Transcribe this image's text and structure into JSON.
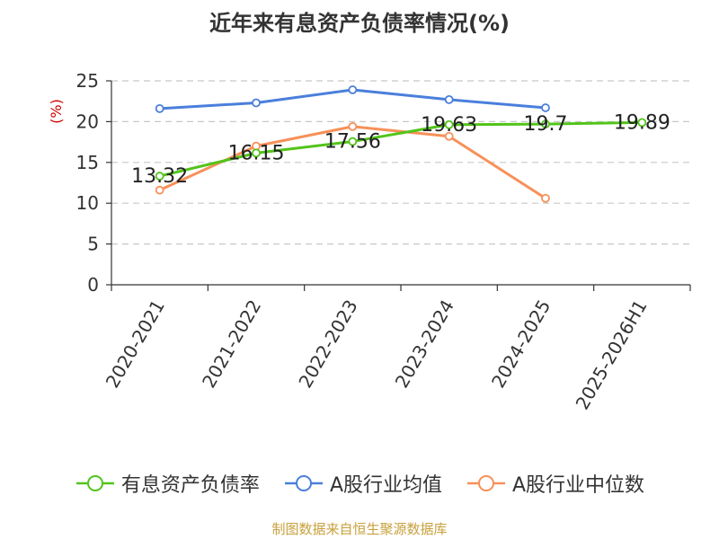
{
  "title": "近年来有息资产负债率情况(%)",
  "source_note": "制图数据来自恒生聚源数据库",
  "colors": {
    "green": "#52c41a",
    "blue": "#4a7fdc",
    "orange": "#f79058",
    "unit_label": "#cc0000"
  },
  "chart_data": {
    "type": "line",
    "title": "近年来有息资产负债率情况(%)",
    "ylabel": "(%)",
    "xlabel": "",
    "categories": [
      "2020-2021",
      "2021-2022",
      "2022-2023",
      "2023-2024",
      "2024-2025",
      "2025-2026H1"
    ],
    "ylim": [
      0,
      25
    ],
    "yticks": [
      0,
      5,
      10,
      15,
      20,
      25
    ],
    "grid": true,
    "legend_position": "bottom",
    "series": [
      {
        "name": "有息资产负债率",
        "color": "#52c41a",
        "values": [
          13.32,
          16.15,
          17.56,
          19.63,
          19.7,
          19.89
        ],
        "labels": [
          "13.32",
          "16.15",
          "17.56",
          "19.63",
          "19.7",
          "19.89"
        ]
      },
      {
        "name": "A股行业均值",
        "color": "#4a7fdc",
        "values": [
          21.6,
          22.3,
          23.9,
          22.7,
          21.7,
          null
        ]
      },
      {
        "name": "A股行业中位数",
        "color": "#f79058",
        "values": [
          11.6,
          17.0,
          19.4,
          18.2,
          10.6,
          null
        ]
      }
    ]
  }
}
